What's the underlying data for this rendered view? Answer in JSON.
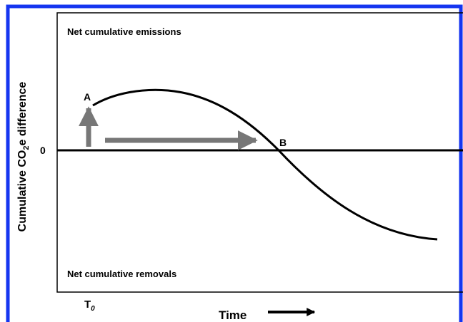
{
  "diagram": {
    "y_axis_label": {
      "main": "Cumulative CO",
      "subscript": "2",
      "rest": "e difference"
    },
    "x_axis_label": "Time",
    "zero_label": "0",
    "origin_label": {
      "main": "T",
      "subscript": "0"
    },
    "top_region": "Net cumulative emissions",
    "bottom_region": "Net cumulative removals",
    "point_a": "A",
    "point_b": "B"
  }
}
